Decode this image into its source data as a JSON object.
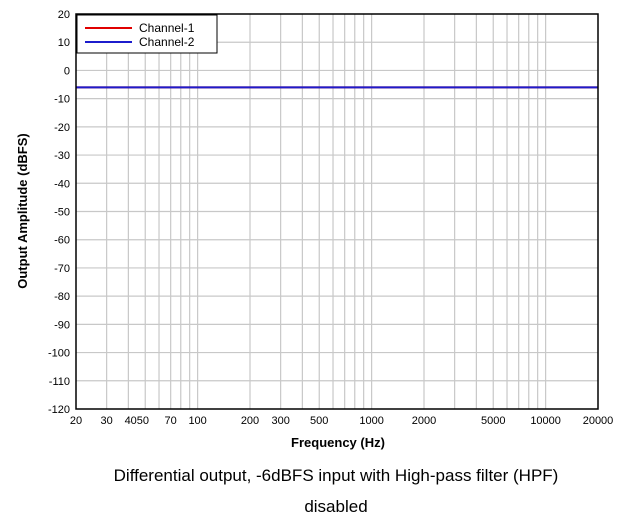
{
  "caption": {
    "line1": "Differential output, -6dBFS input with High-pass filter (HPF)",
    "line2": "disabled"
  },
  "chart_data": {
    "type": "line",
    "xlabel": "Frequency (Hz)",
    "ylabel": "Output Amplitude (dBFS)",
    "xscale": "log",
    "xlim": [
      20,
      20000
    ],
    "ylim": [
      -120,
      20
    ],
    "x_tick_labels": [
      "20",
      "30",
      "4050",
      "70",
      "100",
      "200",
      "300",
      "500",
      "1000",
      "2000",
      "5000",
      "10000",
      "20000"
    ],
    "y_ticks": [
      20,
      10,
      0,
      -10,
      -20,
      -30,
      -40,
      -50,
      -60,
      -70,
      -80,
      -90,
      -100,
      -110,
      -120
    ],
    "grid": true,
    "legend_position": "top-left",
    "series": [
      {
        "name": "Channel-1",
        "color": "#e00000",
        "x": [
          20,
          100,
          1000,
          10000,
          20000
        ],
        "y": [
          -6,
          -6,
          -6,
          -6,
          -6
        ]
      },
      {
        "name": "Channel-2",
        "color": "#1c1ccc",
        "x": [
          20,
          100,
          1000,
          10000,
          20000
        ],
        "y": [
          -6,
          -6,
          -6,
          -6,
          -6
        ]
      }
    ]
  }
}
